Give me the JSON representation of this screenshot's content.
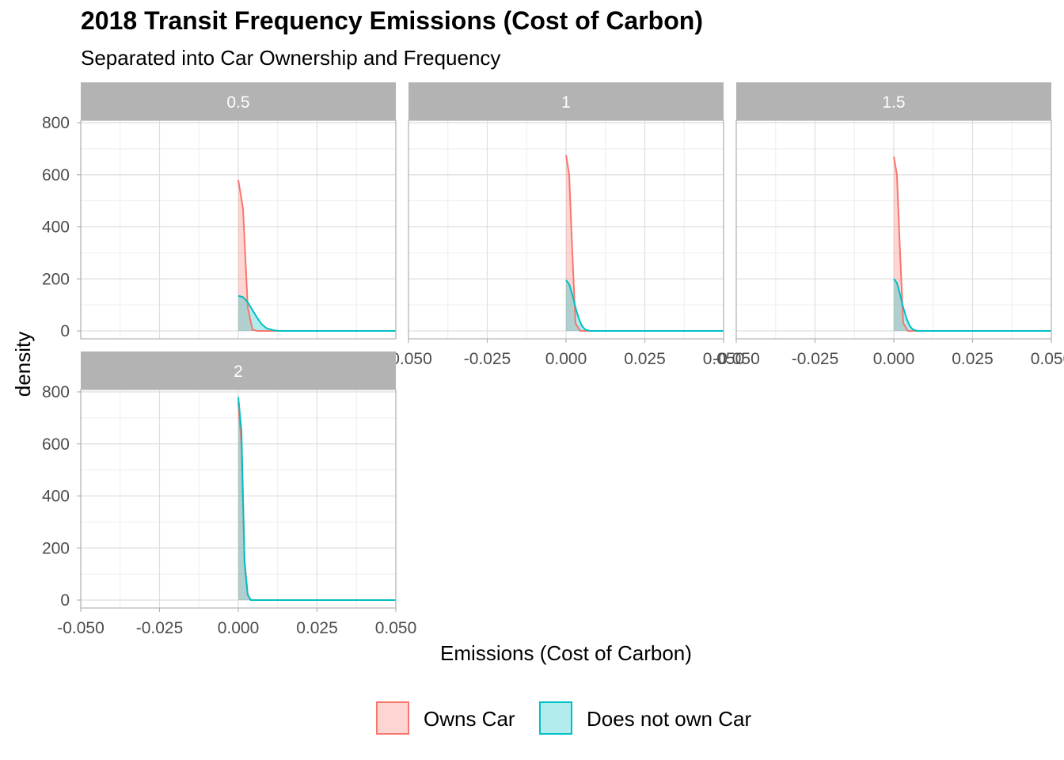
{
  "chart_data": {
    "type": "area",
    "title": "2018 Transit Frequency Emissions (Cost of Carbon)",
    "subtitle": "Separated into Car Ownership and Frequency",
    "xlabel": "Emissions (Cost of Carbon)",
    "ylabel": "density",
    "xlim": [
      -0.05,
      0.05
    ],
    "ylim": [
      0,
      800
    ],
    "x_ticks": [
      "-0.050",
      "-0.025",
      "0.000",
      "0.025",
      "0.050"
    ],
    "y_ticks": [
      "0",
      "200",
      "400",
      "600",
      "800"
    ],
    "grid": true,
    "legend_position": "bottom",
    "series_styles": [
      {
        "name": "Owns Car",
        "color": "#f8766d"
      },
      {
        "name": "Does not own Car",
        "color": "#00bfc4"
      }
    ],
    "panels": [
      {
        "label": "0.5",
        "series": [
          {
            "name": "Owns Car",
            "points": [
              [
                0.0,
                580
              ],
              [
                0.0015,
                470
              ],
              [
                0.003,
                90
              ],
              [
                0.0045,
                5
              ],
              [
                0.006,
                0
              ],
              [
                0.05,
                0
              ]
            ]
          },
          {
            "name": "Does not own Car",
            "points": [
              [
                0.0,
                135
              ],
              [
                0.0015,
                130
              ],
              [
                0.003,
                110
              ],
              [
                0.0045,
                80
              ],
              [
                0.006,
                50
              ],
              [
                0.0075,
                25
              ],
              [
                0.009,
                10
              ],
              [
                0.011,
                3
              ],
              [
                0.013,
                0
              ],
              [
                0.05,
                0
              ]
            ]
          }
        ]
      },
      {
        "label": "1",
        "series": [
          {
            "name": "Owns Car",
            "points": [
              [
                0.0,
                675
              ],
              [
                0.001,
                600
              ],
              [
                0.002,
                300
              ],
              [
                0.003,
                30
              ],
              [
                0.0045,
                0
              ],
              [
                0.05,
                0
              ]
            ]
          },
          {
            "name": "Does not own Car",
            "points": [
              [
                0.0,
                195
              ],
              [
                0.001,
                180
              ],
              [
                0.002,
                140
              ],
              [
                0.003,
                90
              ],
              [
                0.004,
                50
              ],
              [
                0.005,
                20
              ],
              [
                0.006,
                6
              ],
              [
                0.0075,
                0
              ],
              [
                0.05,
                0
              ]
            ]
          }
        ]
      },
      {
        "label": "1.5",
        "series": [
          {
            "name": "Owns Car",
            "points": [
              [
                0.0,
                670
              ],
              [
                0.001,
                600
              ],
              [
                0.002,
                300
              ],
              [
                0.003,
                30
              ],
              [
                0.0045,
                0
              ],
              [
                0.05,
                0
              ]
            ]
          },
          {
            "name": "Does not own Car",
            "points": [
              [
                0.0,
                200
              ],
              [
                0.001,
                185
              ],
              [
                0.002,
                140
              ],
              [
                0.003,
                90
              ],
              [
                0.004,
                50
              ],
              [
                0.005,
                20
              ],
              [
                0.006,
                6
              ],
              [
                0.0075,
                0
              ],
              [
                0.05,
                0
              ]
            ]
          }
        ]
      },
      {
        "label": "2",
        "series": [
          {
            "name": "Owns Car",
            "points": [
              [
                0.0,
                760
              ],
              [
                0.001,
                600
              ],
              [
                0.002,
                150
              ],
              [
                0.003,
                20
              ],
              [
                0.004,
                0
              ],
              [
                0.05,
                0
              ]
            ]
          },
          {
            "name": "Does not own Car",
            "points": [
              [
                0.0,
                780
              ],
              [
                0.001,
                650
              ],
              [
                0.002,
                140
              ],
              [
                0.003,
                20
              ],
              [
                0.004,
                0
              ],
              [
                0.05,
                0
              ]
            ]
          }
        ]
      }
    ]
  }
}
